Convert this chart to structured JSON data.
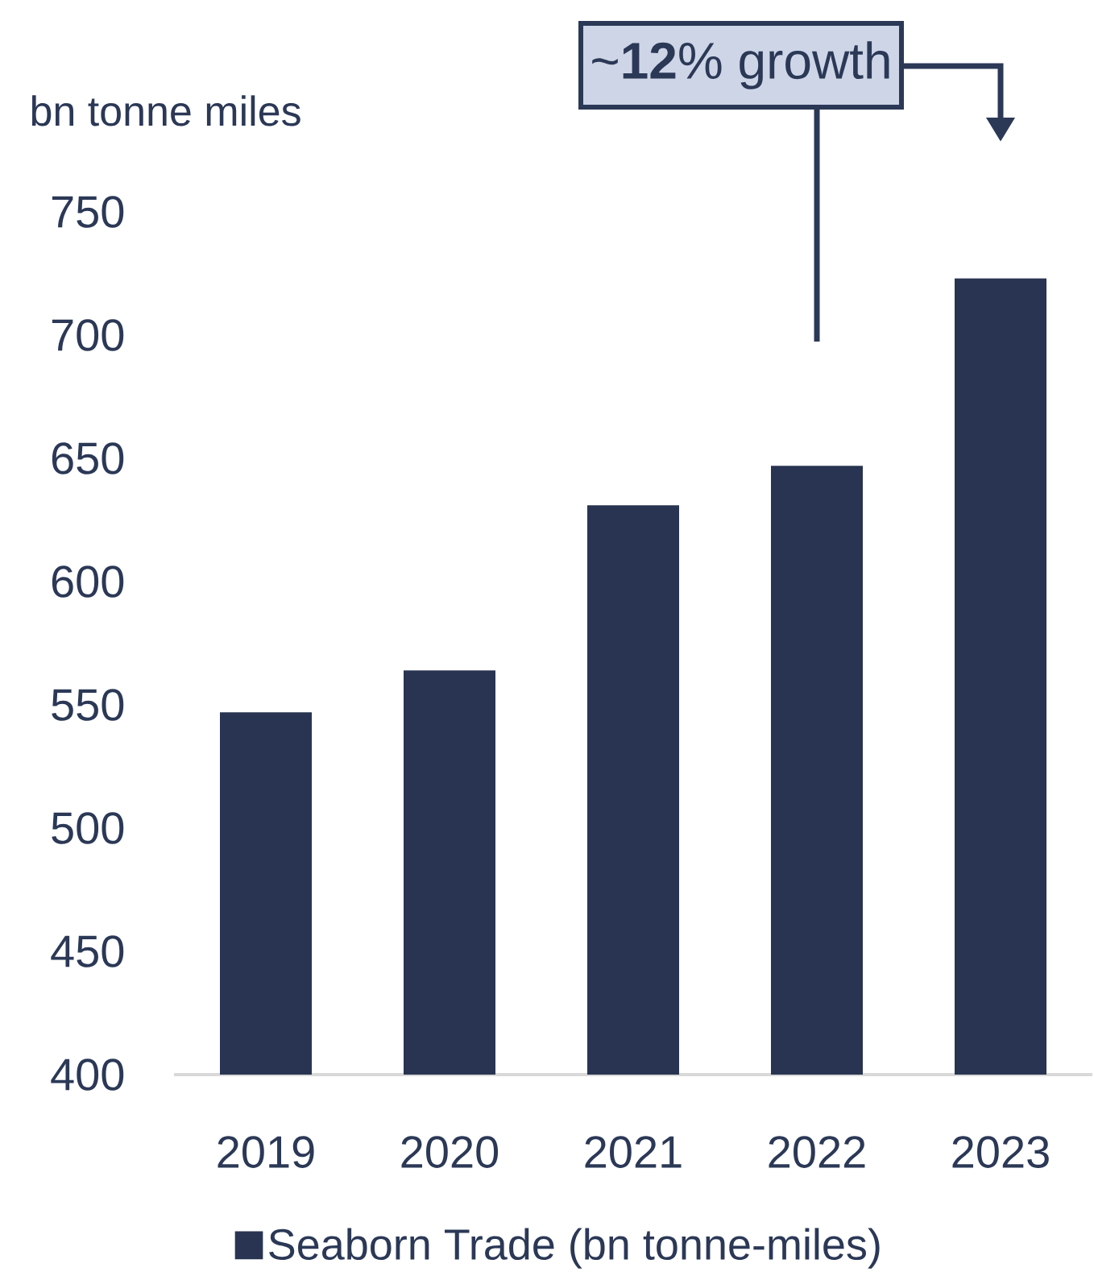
{
  "chart_data": {
    "type": "bar",
    "ylabel": "bn tonne miles",
    "categories": [
      "2019",
      "2020",
      "2021",
      "2022",
      "2023"
    ],
    "series": [
      {
        "name": "Seaborn Trade (bn tonne-miles)",
        "color": "#283451",
        "values": [
          547,
          564,
          631,
          647,
          723
        ]
      }
    ],
    "ylim": [
      400,
      750
    ],
    "yticks": [
      400,
      450,
      500,
      550,
      600,
      650,
      700,
      750
    ],
    "legend": "bottom",
    "annotations": [
      "~**12**% growth"
    ]
  }
}
